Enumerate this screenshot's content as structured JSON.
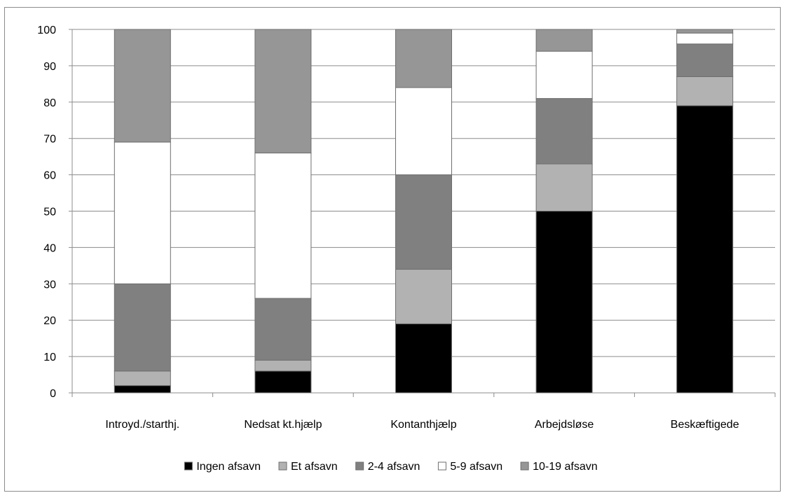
{
  "chart_data": {
    "type": "bar",
    "stacked": true,
    "categories": [
      "Introyd./starthj.",
      "Nedsat kt.hjælp",
      "Kontanthjælp",
      "Arbejdsløse",
      "Beskæftigede"
    ],
    "series": [
      {
        "name": "Ingen afsavn",
        "color": "#000000",
        "values": [
          2,
          6,
          19,
          50,
          79
        ]
      },
      {
        "name": "Et afsavn",
        "color": "#b2b2b2",
        "values": [
          4,
          3,
          15,
          13,
          8
        ]
      },
      {
        "name": "2-4 afsavn",
        "color": "#808080",
        "values": [
          24,
          17,
          26,
          18,
          9
        ]
      },
      {
        "name": "5-9 afsavn",
        "color": "#ffffff",
        "values": [
          39,
          40,
          24,
          13,
          3
        ]
      },
      {
        "name": "10-19 afsavn",
        "color": "#969696",
        "values": [
          31,
          34,
          16,
          6,
          1
        ]
      }
    ],
    "title": "",
    "xlabel": "",
    "ylabel": "",
    "ylim": [
      0,
      100
    ],
    "yticks": [
      0,
      10,
      20,
      30,
      40,
      50,
      60,
      70,
      80,
      90,
      100
    ],
    "grid": true,
    "legend": "bottom"
  }
}
